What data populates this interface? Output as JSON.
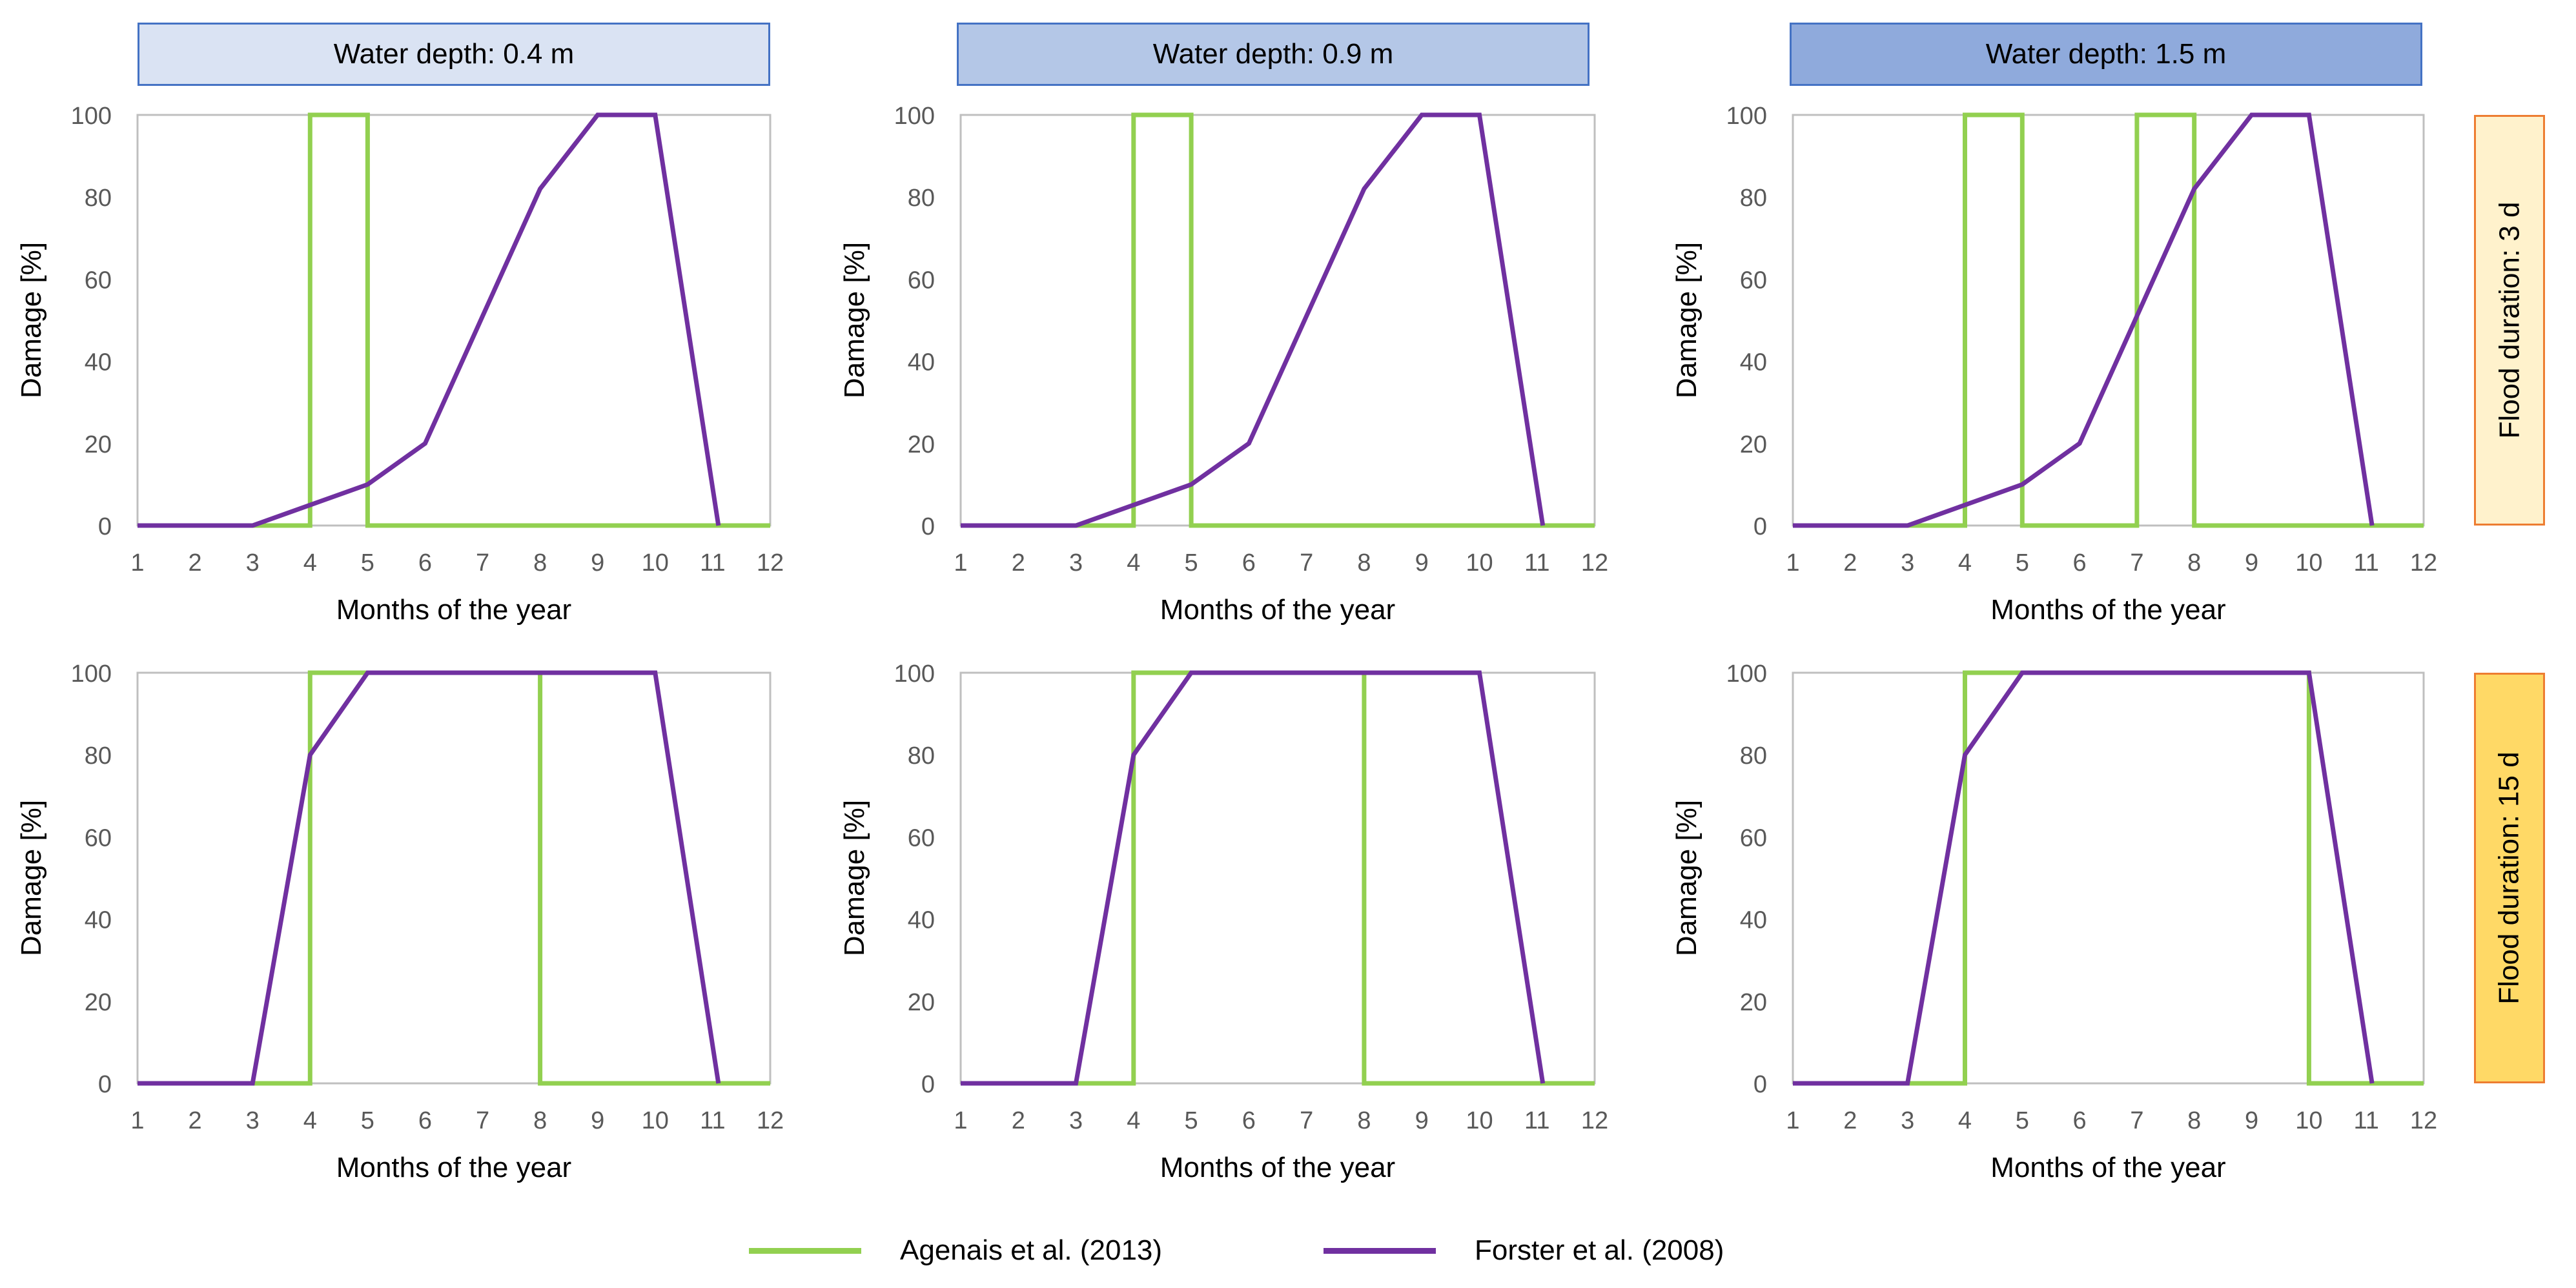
{
  "colors": {
    "agenais": "#92d050",
    "forster": "#7030a0",
    "axis": "#bfbfbf",
    "tick_text": "#595959",
    "col_header_bg": [
      "#dae3f3",
      "#b4c7e7",
      "#8faadc"
    ],
    "col_header_border": "#4472c4",
    "row_header_bg": [
      "#fff2cc",
      "#ffd966"
    ],
    "row_header_border": "#ed7d31"
  },
  "column_headers": [
    "Water depth: 0.4 m",
    "Water depth: 0.9 m",
    "Water depth: 1.5 m"
  ],
  "row_headers": [
    "Flood duration: 3 d",
    "Flood duration: 15 d"
  ],
  "legend": [
    {
      "label": "Agenais et al. (2013)",
      "color": "#92d050"
    },
    {
      "label": "Forster et al. (2008)",
      "color": "#7030a0"
    }
  ],
  "chart_data": [
    {
      "type": "line",
      "panel": "depth 0.4 m, duration 3 d",
      "xlabel": "Months of the year",
      "ylabel": "Damage [%]",
      "xticks": [
        1,
        2,
        3,
        4,
        5,
        6,
        7,
        8,
        9,
        10,
        11,
        12
      ],
      "yticks": [
        0,
        20,
        40,
        60,
        80,
        100
      ],
      "xlim": [
        1,
        12
      ],
      "ylim": [
        0,
        100
      ],
      "grid": false,
      "series": [
        {
          "name": "Agenais et al. (2013)",
          "x": [
            1,
            4,
            4,
            5,
            5,
            12
          ],
          "y": [
            0,
            0,
            100,
            100,
            0,
            0
          ]
        },
        {
          "name": "Forster et al. (2008)",
          "x": [
            1,
            3,
            4,
            5,
            6,
            7,
            8,
            9,
            10,
            11.1
          ],
          "y": [
            0,
            0,
            5,
            10,
            20,
            51,
            82,
            100,
            100,
            0
          ]
        }
      ]
    },
    {
      "type": "line",
      "panel": "depth 0.9 m, duration 3 d",
      "xlabel": "Months of the year",
      "ylabel": "Damage [%]",
      "xticks": [
        1,
        2,
        3,
        4,
        5,
        6,
        7,
        8,
        9,
        10,
        11,
        12
      ],
      "yticks": [
        0,
        20,
        40,
        60,
        80,
        100
      ],
      "xlim": [
        1,
        12
      ],
      "ylim": [
        0,
        100
      ],
      "grid": false,
      "series": [
        {
          "name": "Agenais et al. (2013)",
          "x": [
            1,
            4,
            4,
            5,
            5,
            12
          ],
          "y": [
            0,
            0,
            100,
            100,
            0,
            0
          ]
        },
        {
          "name": "Forster et al. (2008)",
          "x": [
            1,
            3,
            4,
            5,
            6,
            7,
            8,
            9,
            10,
            11.1
          ],
          "y": [
            0,
            0,
            5,
            10,
            20,
            51,
            82,
            100,
            100,
            0
          ]
        }
      ]
    },
    {
      "type": "line",
      "panel": "depth 1.5 m, duration 3 d",
      "xlabel": "Months of the year",
      "ylabel": "Damage [%]",
      "xticks": [
        1,
        2,
        3,
        4,
        5,
        6,
        7,
        8,
        9,
        10,
        11,
        12
      ],
      "yticks": [
        0,
        20,
        40,
        60,
        80,
        100
      ],
      "xlim": [
        1,
        12
      ],
      "ylim": [
        0,
        100
      ],
      "grid": false,
      "series": [
        {
          "name": "Agenais et al. (2013)",
          "x": [
            1,
            4,
            4,
            5,
            5,
            7,
            7,
            8,
            8,
            12
          ],
          "y": [
            0,
            0,
            100,
            100,
            0,
            0,
            100,
            100,
            0,
            0
          ]
        },
        {
          "name": "Forster et al. (2008)",
          "x": [
            1,
            3,
            4,
            5,
            6,
            7,
            8,
            9,
            10,
            11.1
          ],
          "y": [
            0,
            0,
            5,
            10,
            20,
            51,
            82,
            100,
            100,
            0
          ]
        }
      ]
    },
    {
      "type": "line",
      "panel": "depth 0.4 m, duration 15 d",
      "xlabel": "Months of the year",
      "ylabel": "Damage [%]",
      "xticks": [
        1,
        2,
        3,
        4,
        5,
        6,
        7,
        8,
        9,
        10,
        11,
        12
      ],
      "yticks": [
        0,
        20,
        40,
        60,
        80,
        100
      ],
      "xlim": [
        1,
        12
      ],
      "ylim": [
        0,
        100
      ],
      "grid": false,
      "series": [
        {
          "name": "Agenais et al. (2013)",
          "x": [
            1,
            4,
            4,
            8,
            8,
            12
          ],
          "y": [
            0,
            0,
            100,
            100,
            0,
            0
          ]
        },
        {
          "name": "Forster et al. (2008)",
          "x": [
            1,
            3,
            4,
            5,
            10,
            11.1
          ],
          "y": [
            0,
            0,
            80,
            100,
            100,
            0
          ]
        }
      ]
    },
    {
      "type": "line",
      "panel": "depth 0.9 m, duration 15 d",
      "xlabel": "Months of the year",
      "ylabel": "Damage [%]",
      "xticks": [
        1,
        2,
        3,
        4,
        5,
        6,
        7,
        8,
        9,
        10,
        11,
        12
      ],
      "yticks": [
        0,
        20,
        40,
        60,
        80,
        100
      ],
      "xlim": [
        1,
        12
      ],
      "ylim": [
        0,
        100
      ],
      "grid": false,
      "series": [
        {
          "name": "Agenais et al. (2013)",
          "x": [
            1,
            4,
            4,
            8,
            8,
            12
          ],
          "y": [
            0,
            0,
            100,
            100,
            0,
            0
          ]
        },
        {
          "name": "Forster et al. (2008)",
          "x": [
            1,
            3,
            4,
            5,
            10,
            11.1
          ],
          "y": [
            0,
            0,
            80,
            100,
            100,
            0
          ]
        }
      ]
    },
    {
      "type": "line",
      "panel": "depth 1.5 m, duration 15 d",
      "xlabel": "Months of the year",
      "ylabel": "Damage [%]",
      "xticks": [
        1,
        2,
        3,
        4,
        5,
        6,
        7,
        8,
        9,
        10,
        11,
        12
      ],
      "yticks": [
        0,
        20,
        40,
        60,
        80,
        100
      ],
      "xlim": [
        1,
        12
      ],
      "ylim": [
        0,
        100
      ],
      "grid": false,
      "series": [
        {
          "name": "Agenais et al. (2013)",
          "x": [
            1,
            4,
            4,
            10,
            10,
            12
          ],
          "y": [
            0,
            0,
            100,
            100,
            0,
            0
          ]
        },
        {
          "name": "Forster et al. (2008)",
          "x": [
            1,
            3,
            4,
            5,
            10,
            11.1
          ],
          "y": [
            0,
            0,
            80,
            100,
            100,
            0
          ]
        }
      ]
    }
  ]
}
